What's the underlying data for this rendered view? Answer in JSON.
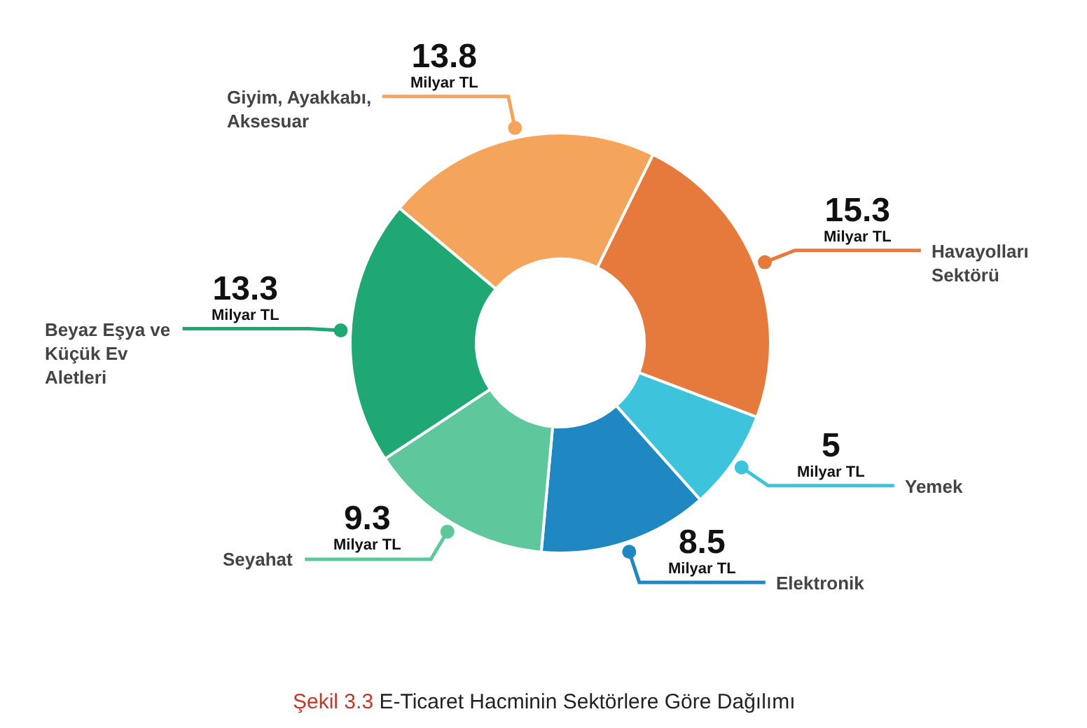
{
  "chart_data": {
    "type": "donut",
    "categories": [
      "Giyim, Ayakkabı, Aksesuar",
      "Havayolları Sektörü",
      "Yemek",
      "Elektronik",
      "Seyahat",
      "Beyaz Eşya ve Küçük Ev Aletleri"
    ],
    "values": [
      13.8,
      15.3,
      5,
      8.5,
      9.3,
      13.3
    ],
    "value_labels": [
      "13.8\nMilyar TL",
      "15.3\nMilyar TL",
      "5\nMilyar TL",
      "8.5\nMilyar TL",
      "9.3\nMilyar TL",
      "13.3\nMilyar TL"
    ],
    "colors": [
      "#f4a55b",
      "#e67a3c",
      "#3ec3dc",
      "#1f87c2",
      "#5ec79c",
      "#1fa774"
    ],
    "annotations": [
      "Şekil 3.3",
      "E-Ticaret Hacminin Sektörlere Göre Dağılımı"
    ],
    "legend": false
  }
}
